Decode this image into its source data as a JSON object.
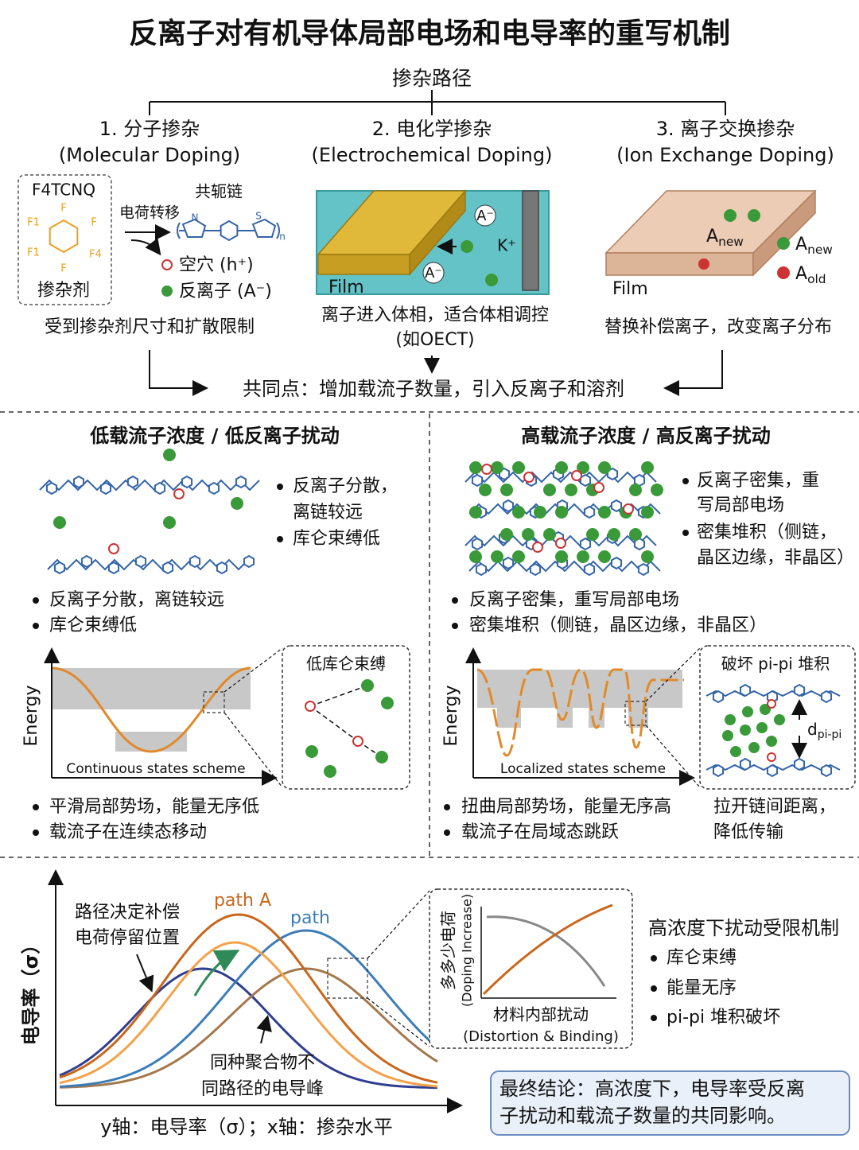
{
  "title": "反离子对有机导体局部电场和电导率的重写机制",
  "doping": {
    "heading": "掺杂路径",
    "paths": [
      {
        "title": "1. 分子掺杂",
        "subtitle": "(Molecular Doping)"
      },
      {
        "title": "2. 电化学掺杂",
        "subtitle": "(Electrochemical Doping)"
      },
      {
        "title": "3. 离子交换掺杂",
        "subtitle": "(Ion Exchange Doping)"
      }
    ],
    "molecular": {
      "dopant_name": "F4TCNQ",
      "dopant_label": "掺杂剂",
      "atoms": [
        "F",
        "F1",
        "F",
        "F1",
        "F4",
        "F"
      ],
      "charge_transfer": "电荷转移",
      "chain": "共轭链",
      "chain_atoms": [
        "N",
        "S",
        "n"
      ],
      "hole": "空穴 (h⁺)",
      "counterion": "反离子 (A⁻)",
      "note": "受到掺杂剂尺寸和扩散限制"
    },
    "electrochemical": {
      "film": "Film",
      "ions": [
        "A⁻",
        "A⁻"
      ],
      "cation": "K⁺",
      "note": "离子进入体相，适合体相调控",
      "note2": "(如OECT)"
    },
    "ion_exchange": {
      "film": "Film",
      "slab_label": {
        "base": "A",
        "sub": "new"
      },
      "legend": [
        {
          "base": "A",
          "sub": "new"
        },
        {
          "base": "A",
          "sub": "old"
        }
      ],
      "note": "替换补偿离子，改变离子分布"
    },
    "common": "共同点：增加载流子数量，引入反离子和溶剂"
  },
  "low": {
    "heading": "低载流子浓度 / 低反离子扰动",
    "side_bullets": [
      [
        "反离子分散，",
        "离链较远"
      ],
      [
        "库仑束缚低"
      ]
    ],
    "bullets": [
      "反离子分散，离链较远",
      "库仑束缚低"
    ],
    "energy_axis": "Energy",
    "scheme": "Continuous states scheme",
    "inset_title": "低库仑束缚",
    "bottom_bullets": [
      "平滑局部势场，能量无序低",
      "载流子在连续态移动"
    ]
  },
  "high": {
    "heading": "高载流子浓度 / 高反离子扰动",
    "side_bullets": [
      [
        "反离子密集，重",
        "写局部电场"
      ],
      [
        "密集堆积（侧链，",
        "晶区边缘，非晶区）"
      ]
    ],
    "bullets": [
      "反离子密集，重写局部电场",
      "密集堆积（侧链，晶区边缘，非晶区）"
    ],
    "energy_axis": "Energy",
    "scheme": "Localized states scheme",
    "inset_title": "破坏 pi-pi 堆积",
    "inset_label": {
      "base": "d",
      "sub": "pi-pi"
    },
    "bottom_bullets": [
      "扭曲局部势场，能量无序高",
      "载流子在局域态跳跃"
    ],
    "side_note": [
      "拉开链间距离，",
      "降低传输"
    ]
  },
  "conductivity": {
    "y_axis": "电导率（σ）",
    "annotation_1": [
      "路径决定补偿",
      "电荷停留位置"
    ],
    "path_labels": [
      "path A",
      "path"
    ],
    "annotation_2": [
      "同种聚合物不",
      "同路径的电导峰"
    ],
    "inset": {
      "y_label": "多多少电荷",
      "y_sub": "(Doping Increase)",
      "x_label": "材料内部扰动",
      "x_sub": "(Distortion & Binding)"
    },
    "mechanism": {
      "title": "高浓度下扰动受限机制",
      "items": [
        "库仑束缚",
        "能量无序",
        "pi-pi 堆积破坏"
      ]
    },
    "conclusion": [
      "最终结论：高浓度下，电导率受反离",
      "子扰动和载流子数量的共同影响。"
    ],
    "footer": "y轴：电导率（σ）；x轴：掺杂水平"
  }
}
